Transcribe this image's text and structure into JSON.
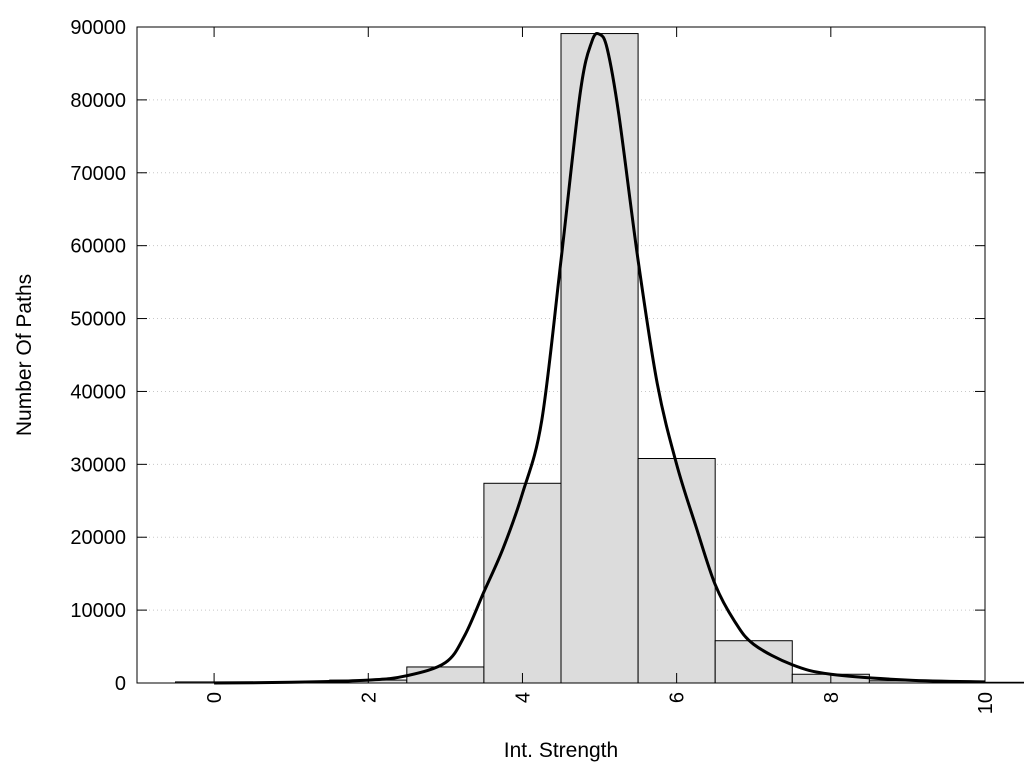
{
  "chart_data": {
    "type": "bar",
    "title": "",
    "xlabel": "Int. Strength",
    "ylabel": "Number Of Paths",
    "xlim": [
      -1,
      10
    ],
    "ylim": [
      0,
      90000
    ],
    "x_ticks": [
      0,
      2,
      4,
      6,
      8,
      10
    ],
    "y_ticks": [
      0,
      10000,
      20000,
      30000,
      40000,
      50000,
      60000,
      70000,
      80000,
      90000
    ],
    "grid": "horizontal dotted",
    "legend": "none",
    "bar_fill": "#dcdcdc",
    "bar_edge": "#000000",
    "bins": [
      {
        "x": 0,
        "value": 150
      },
      {
        "x": 1,
        "value": 100
      },
      {
        "x": 2,
        "value": 400
      },
      {
        "x": 3,
        "value": 2200
      },
      {
        "x": 4,
        "value": 27400
      },
      {
        "x": 5,
        "value": 89100
      },
      {
        "x": 6,
        "value": 30800
      },
      {
        "x": 7,
        "value": 5800
      },
      {
        "x": 8,
        "value": 1200
      },
      {
        "x": 9,
        "value": 300
      },
      {
        "x": 10,
        "value": 100
      }
    ],
    "bin_width": 1,
    "fit_curve": {
      "color": "#000000",
      "x": [
        0,
        1,
        2,
        2.5,
        3,
        3.25,
        3.5,
        3.75,
        4,
        4.25,
        4.5,
        4.75,
        4.9,
        5,
        5.1,
        5.25,
        5.5,
        5.75,
        6,
        6.25,
        6.5,
        6.75,
        7,
        7.5,
        8,
        9,
        10
      ],
      "y": [
        0,
        100,
        400,
        1000,
        2800,
        6500,
        12500,
        18500,
        26000,
        36000,
        58000,
        81000,
        88000,
        89000,
        87000,
        78000,
        58000,
        41000,
        30000,
        21500,
        13500,
        8500,
        5300,
        2500,
        1200,
        400,
        150
      ]
    }
  }
}
